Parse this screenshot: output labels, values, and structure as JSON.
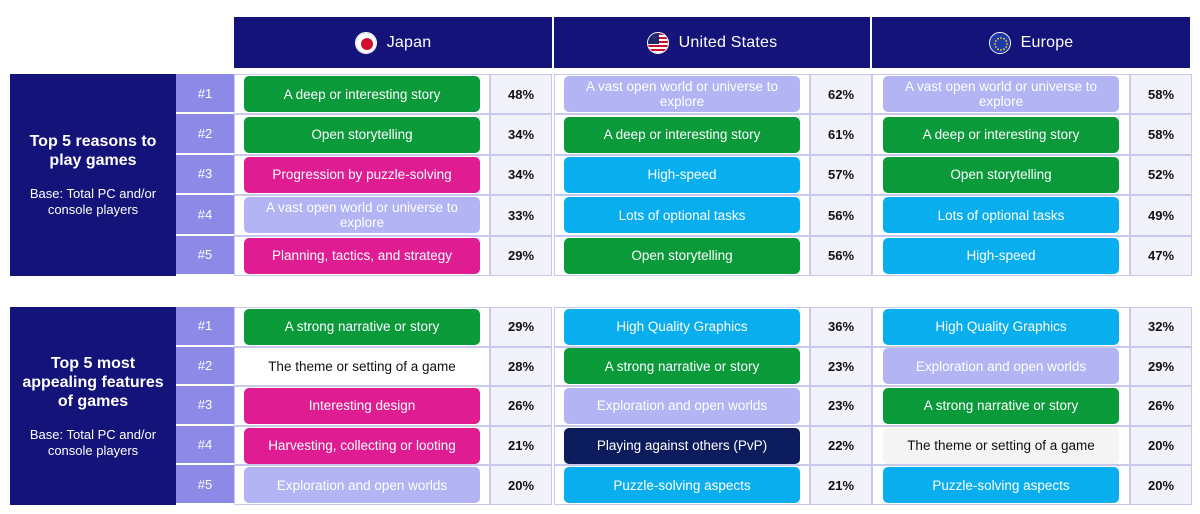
{
  "headers": [
    {
      "name": "Japan",
      "flag": "japan-flag-icon"
    },
    {
      "name": "United States",
      "flag": "us-flag-icon"
    },
    {
      "name": "Europe",
      "flag": "eu-flag-icon"
    }
  ],
  "colors": {
    "navy": "#14137a",
    "rank_bg": "#8c8ae6",
    "green": "#0a9a3a",
    "magenta": "#df1c92",
    "lavender": "#b3b4f4",
    "sky": "#08aeed",
    "dark_navy": "#0c1b5c",
    "white_pill": "#ffffff",
    "grey_pill": "#f4f4f4"
  },
  "sections": [
    {
      "title": "Top 5 reasons to play games",
      "base": "Base: Total PC and/or console players",
      "rows": [
        {
          "rank": "#1",
          "cells": [
            {
              "text": "A deep or interesting story",
              "pct": "48%",
              "color": "green"
            },
            {
              "text": "A vast open world or universe to explore",
              "pct": "62%",
              "color": "lavender"
            },
            {
              "text": "A vast open world or universe to explore",
              "pct": "58%",
              "color": "lavender"
            }
          ]
        },
        {
          "rank": "#2",
          "cells": [
            {
              "text": "Open storytelling",
              "pct": "34%",
              "color": "green"
            },
            {
              "text": "A deep or interesting story",
              "pct": "61%",
              "color": "green"
            },
            {
              "text": "A deep or interesting story",
              "pct": "58%",
              "color": "green"
            }
          ]
        },
        {
          "rank": "#3",
          "cells": [
            {
              "text": "Progression by puzzle-solving",
              "pct": "34%",
              "color": "magenta"
            },
            {
              "text": "High-speed",
              "pct": "57%",
              "color": "sky"
            },
            {
              "text": "Open storytelling",
              "pct": "52%",
              "color": "green"
            }
          ]
        },
        {
          "rank": "#4",
          "cells": [
            {
              "text": "A vast open world or universe to explore",
              "pct": "33%",
              "color": "lavender"
            },
            {
              "text": "Lots of optional tasks",
              "pct": "56%",
              "color": "sky"
            },
            {
              "text": "Lots of optional tasks",
              "pct": "49%",
              "color": "sky"
            }
          ]
        },
        {
          "rank": "#5",
          "cells": [
            {
              "text": "Planning, tactics, and strategy",
              "pct": "29%",
              "color": "magenta"
            },
            {
              "text": "Open storytelling",
              "pct": "56%",
              "color": "green"
            },
            {
              "text": "High-speed",
              "pct": "47%",
              "color": "sky"
            }
          ]
        }
      ]
    },
    {
      "title": "Top 5 most appealing features of games",
      "base": "Base: Total PC and/or console players",
      "rows": [
        {
          "rank": "#1",
          "cells": [
            {
              "text": "A strong narrative or story",
              "pct": "29%",
              "color": "green"
            },
            {
              "text": "High Quality Graphics",
              "pct": "36%",
              "color": "sky"
            },
            {
              "text": "High Quality Graphics",
              "pct": "32%",
              "color": "sky"
            }
          ]
        },
        {
          "rank": "#2",
          "cells": [
            {
              "text": "The theme or setting of a game",
              "pct": "28%",
              "color": "white_pill"
            },
            {
              "text": "A strong narrative or story",
              "pct": "23%",
              "color": "green"
            },
            {
              "text": "Exploration and open worlds",
              "pct": "29%",
              "color": "lavender"
            }
          ]
        },
        {
          "rank": "#3",
          "cells": [
            {
              "text": "Interesting design",
              "pct": "26%",
              "color": "magenta"
            },
            {
              "text": "Exploration and open worlds",
              "pct": "23%",
              "color": "lavender"
            },
            {
              "text": "A strong narrative or story",
              "pct": "26%",
              "color": "green"
            }
          ]
        },
        {
          "rank": "#4",
          "cells": [
            {
              "text": "Harvesting, collecting or looting",
              "pct": "21%",
              "color": "magenta"
            },
            {
              "text": "Playing against others (PvP)",
              "pct": "22%",
              "color": "dark_navy"
            },
            {
              "text": "The theme or setting of a game",
              "pct": "20%",
              "color": "grey_pill"
            }
          ]
        },
        {
          "rank": "#5",
          "cells": [
            {
              "text": "Exploration and open worlds",
              "pct": "20%",
              "color": "lavender"
            },
            {
              "text": "Puzzle-solving aspects",
              "pct": "21%",
              "color": "sky"
            },
            {
              "text": "Puzzle-solving aspects",
              "pct": "20%",
              "color": "sky"
            }
          ]
        }
      ]
    }
  ]
}
